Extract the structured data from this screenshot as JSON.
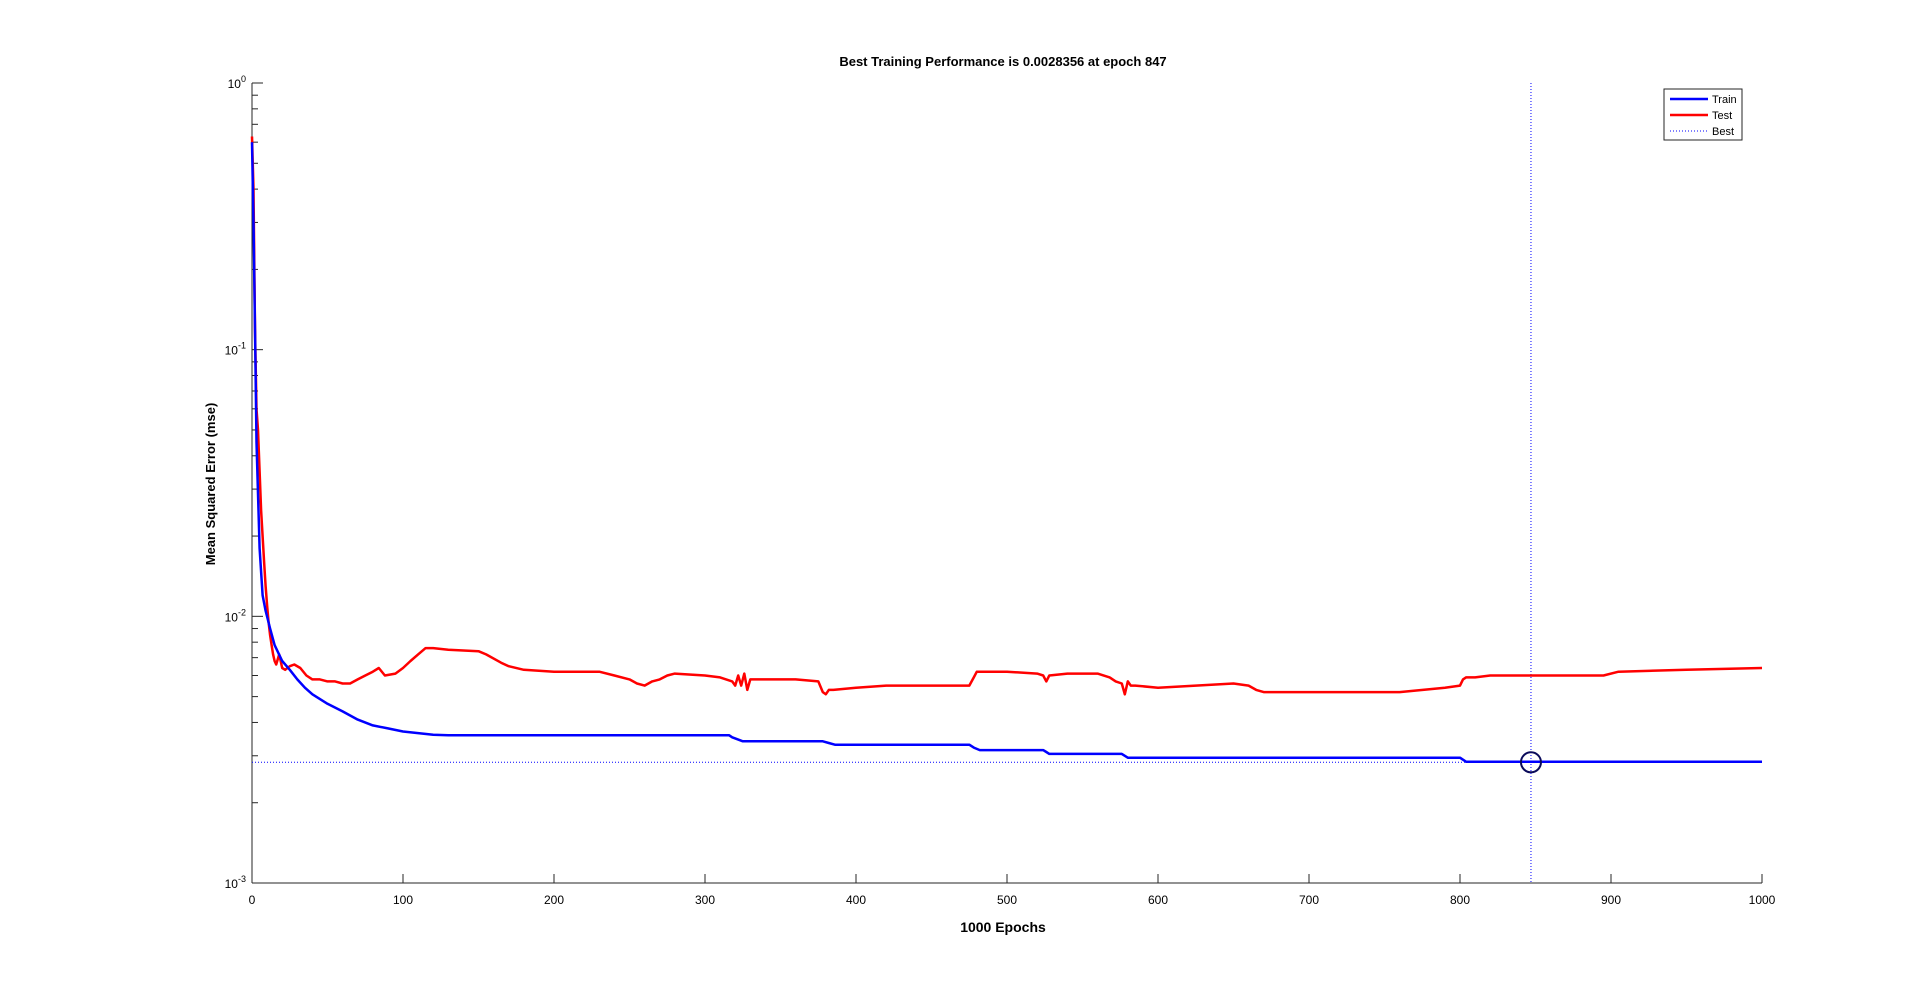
{
  "chart_data": {
    "type": "line",
    "title": "Best Training Performance is 0.0028356 at epoch 847",
    "xlabel": "1000 Epochs",
    "ylabel": "Mean Squared Error  (mse)",
    "xscale": "linear",
    "yscale": "log",
    "xlim": [
      0,
      1000
    ],
    "ylim": [
      0.001,
      1
    ],
    "grid": false,
    "legend_position": "top-right",
    "x_ticks": [
      0,
      100,
      200,
      300,
      400,
      500,
      600,
      700,
      800,
      900,
      1000
    ],
    "x_tick_labels": [
      "0",
      "100",
      "200",
      "300",
      "400",
      "500",
      "600",
      "700",
      "800",
      "900",
      "1000"
    ],
    "y_ticks": [
      0.001,
      0.01,
      0.1,
      1
    ],
    "y_tick_labels": [
      {
        "base": "10",
        "exp": "-3"
      },
      {
        "base": "10",
        "exp": "-2"
      },
      {
        "base": "10",
        "exp": "-1"
      },
      {
        "base": "10",
        "exp": "0"
      }
    ],
    "series": [
      {
        "name": "Train",
        "color": "#0000ff",
        "x": [
          0,
          1,
          2,
          3,
          5,
          7,
          9,
          12,
          15,
          20,
          25,
          30,
          35,
          40,
          50,
          60,
          70,
          80,
          90,
          100,
          110,
          120,
          130,
          200,
          316,
          318,
          322,
          325,
          330,
          378,
          382,
          386,
          390,
          475,
          478,
          482,
          486,
          490,
          524,
          526,
          528,
          530,
          576,
          578,
          580,
          582,
          800,
          802,
          804,
          806,
          1000
        ],
        "y": [
          0.6,
          0.3,
          0.12,
          0.045,
          0.018,
          0.012,
          0.0105,
          0.009,
          0.0078,
          0.0068,
          0.0063,
          0.0058,
          0.0054,
          0.0051,
          0.0047,
          0.0044,
          0.0041,
          0.0039,
          0.0038,
          0.0037,
          0.00365,
          0.0036,
          0.00358,
          0.00358,
          0.00358,
          0.00352,
          0.00345,
          0.0034,
          0.0034,
          0.0034,
          0.00335,
          0.0033,
          0.0033,
          0.0033,
          0.00322,
          0.00315,
          0.00315,
          0.00315,
          0.00315,
          0.0031,
          0.00305,
          0.00305,
          0.00305,
          0.003,
          0.00295,
          0.00295,
          0.00295,
          0.0029,
          0.00285,
          0.00285,
          0.00285
        ]
      },
      {
        "name": "Test",
        "color": "#ff0000",
        "x": [
          0,
          1,
          2,
          3,
          4,
          5,
          6,
          7,
          8,
          9,
          10,
          11,
          12,
          13,
          14,
          15,
          16,
          18,
          20,
          22,
          25,
          28,
          32,
          36,
          40,
          45,
          50,
          55,
          60,
          65,
          70,
          75,
          80,
          84,
          88,
          95,
          100,
          105,
          110,
          115,
          120,
          130,
          150,
          155,
          165,
          170,
          180,
          200,
          230,
          240,
          250,
          255,
          260,
          265,
          270,
          275,
          280,
          300,
          310,
          318,
          320,
          322,
          324,
          326,
          328,
          330,
          360,
          375,
          378,
          380,
          382,
          385,
          400,
          420,
          450,
          475,
          478,
          480,
          500,
          520,
          524,
          526,
          528,
          540,
          560,
          568,
          572,
          576,
          578,
          580,
          582,
          585,
          600,
          650,
          660,
          665,
          670,
          680,
          700,
          760,
          790,
          800,
          802,
          804,
          806,
          810,
          820,
          850,
          880,
          895,
          905,
          950,
          1000
        ],
        "y": [
          0.63,
          0.4,
          0.12,
          0.06,
          0.05,
          0.035,
          0.025,
          0.02,
          0.016,
          0.013,
          0.011,
          0.0095,
          0.0085,
          0.0078,
          0.0072,
          0.0068,
          0.0066,
          0.0072,
          0.0064,
          0.0063,
          0.0065,
          0.0066,
          0.0064,
          0.006,
          0.0058,
          0.0058,
          0.0057,
          0.0057,
          0.0056,
          0.0056,
          0.0058,
          0.006,
          0.0062,
          0.0064,
          0.006,
          0.0061,
          0.0064,
          0.0068,
          0.0072,
          0.0076,
          0.0076,
          0.0075,
          0.0074,
          0.0072,
          0.0067,
          0.0065,
          0.0063,
          0.0062,
          0.0062,
          0.006,
          0.0058,
          0.0056,
          0.0055,
          0.0057,
          0.0058,
          0.006,
          0.0061,
          0.006,
          0.0059,
          0.0057,
          0.0055,
          0.006,
          0.0055,
          0.0061,
          0.0053,
          0.0058,
          0.0058,
          0.0057,
          0.0052,
          0.0051,
          0.0053,
          0.0053,
          0.0054,
          0.0055,
          0.0055,
          0.0055,
          0.0059,
          0.0062,
          0.0062,
          0.0061,
          0.006,
          0.0057,
          0.006,
          0.0061,
          0.0061,
          0.0059,
          0.0057,
          0.0056,
          0.0051,
          0.0057,
          0.0055,
          0.0055,
          0.0054,
          0.0056,
          0.0055,
          0.0053,
          0.0052,
          0.0052,
          0.0052,
          0.0052,
          0.0054,
          0.0055,
          0.0058,
          0.0059,
          0.0059,
          0.0059,
          0.006,
          0.006,
          0.006,
          0.006,
          0.0062,
          0.0063,
          0.0064
        ]
      },
      {
        "name": "Best",
        "color": "#0000ff",
        "style": "dotted",
        "horizontal_y": 0.0028356,
        "vertical_x": 847
      }
    ],
    "best_marker": {
      "x": 847,
      "y": 0.0028356
    }
  }
}
